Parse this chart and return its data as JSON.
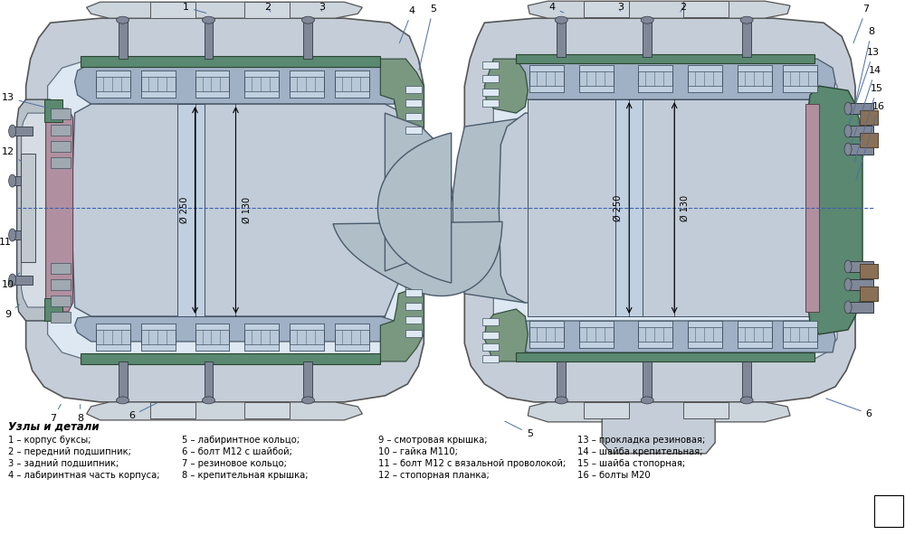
{
  "background_color": "#ffffff",
  "legend_title": "Узлы и детали",
  "col1_items": [
    [
      "1",
      "– корпус буксы;"
    ],
    [
      "2",
      "– передний подшипник;"
    ],
    [
      "3",
      "– задний подшипник;"
    ],
    [
      "4",
      "– лабиринтная часть корпуса;"
    ]
  ],
  "col2_items": [
    [
      "5",
      "– лабиринтное кольцо;"
    ],
    [
      "6",
      "– болт M12 с шайбой;"
    ],
    [
      "7",
      "– резиновое кольцо;"
    ],
    [
      "8",
      "– крепительная крышка;"
    ]
  ],
  "col3_items": [
    [
      "9",
      "– смотровая крышка;"
    ],
    [
      "10",
      "– гайка M110;"
    ],
    [
      "11",
      "– болт M12 с вязальной проволокой;"
    ],
    [
      "12",
      "– стопорная планка;"
    ]
  ],
  "col4_items": [
    [
      "13",
      "– прокладка резиновая;"
    ],
    [
      "14",
      "– шайба крепительная;"
    ],
    [
      "15",
      "– шайба стопорная;"
    ],
    [
      "16",
      "– болты M20"
    ]
  ],
  "dim1": "Ø 250",
  "dim2": "Ø 130",
  "label_color": "#000000",
  "line_color": "#4a6fa5",
  "colors": {
    "outer_body": "#c5ced8",
    "outer_body_edge": "#555555",
    "inner_bore": "#dde8f2",
    "axle": "#c2ccd8",
    "axle_edge": "#4a5a6a",
    "bearing_outer": "#a0b0c5",
    "bearing_inner": "#c0d0e0",
    "bearing_roller": "#b8c8d8",
    "labyrinth_body": "#7a9880",
    "labyrinth_edge": "#355040",
    "green_part": "#5a8870",
    "green_edge": "#2a4530",
    "purple_ring": "#b090a0",
    "purple_edge": "#604050",
    "cover_body": "#b8c0c8",
    "cover_edge": "#404850",
    "hatch_body": "#b0b8c0",
    "seal_groove": "#7a9090",
    "bolt_body": "#808898",
    "bolt_edge": "#303840",
    "spacer": "#b5c5d5",
    "wheel": "#b0bec8",
    "top_cap": "#ccd4dc",
    "brown_bolt": "#8a7055"
  }
}
